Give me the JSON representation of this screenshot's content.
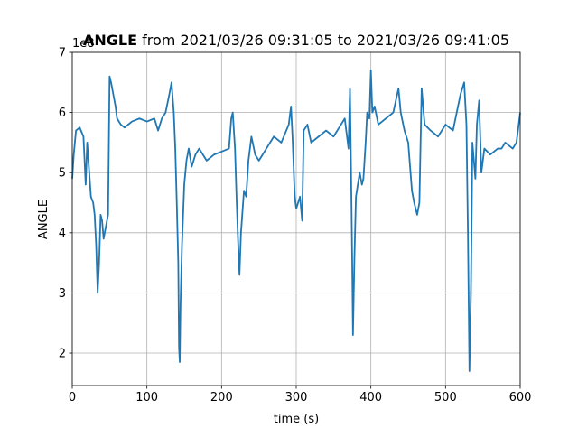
{
  "chart_data": {
    "type": "line",
    "title": {
      "bold": "ANGLE",
      "rest": " from 2021/03/26 09:31:05 to 2021/03/26 09:41:05"
    },
    "y_offset_text": "1e8",
    "xlabel": "time (s)",
    "ylabel": "ANGLE",
    "color": "#1f77b4",
    "grid": true,
    "xlim": [
      0,
      600
    ],
    "ylim": [
      1.46,
      7
    ],
    "xticks": [
      0,
      100,
      200,
      300,
      400,
      500,
      600
    ],
    "yticks": [
      2,
      3,
      4,
      5,
      6,
      7
    ],
    "x": [
      0,
      2,
      5,
      10,
      15,
      18,
      20,
      25,
      28,
      30,
      32,
      34,
      36,
      38,
      40,
      42,
      45,
      48,
      50,
      52,
      55,
      58,
      60,
      65,
      70,
      80,
      90,
      100,
      110,
      115,
      120,
      125,
      130,
      133,
      136,
      138,
      140,
      142,
      143,
      144,
      145,
      147,
      150,
      153,
      156,
      160,
      165,
      170,
      180,
      190,
      200,
      210,
      213,
      215,
      218,
      220,
      222,
      224,
      226,
      230,
      233,
      236,
      240,
      245,
      250,
      255,
      260,
      270,
      280,
      290,
      293,
      295,
      298,
      300,
      305,
      308,
      310,
      315,
      320,
      330,
      340,
      350,
      360,
      365,
      368,
      370,
      372,
      374,
      375,
      376,
      378,
      380,
      385,
      388,
      390,
      393,
      395,
      398,
      400,
      402,
      405,
      410,
      420,
      430,
      437,
      440,
      445,
      450,
      455,
      458,
      462,
      465,
      468,
      472,
      480,
      490,
      500,
      510,
      520,
      525,
      528,
      530,
      532,
      534,
      536,
      538,
      540,
      542,
      545,
      548,
      552,
      560,
      570,
      575,
      580,
      590,
      595,
      600
    ],
    "values": [
      4.9,
      5.3,
      5.7,
      5.75,
      5.6,
      4.8,
      5.5,
      4.6,
      4.5,
      4.3,
      3.8,
      3.0,
      3.5,
      4.3,
      4.2,
      3.9,
      4.1,
      4.3,
      6.6,
      6.5,
      6.3,
      6.1,
      5.9,
      5.8,
      5.75,
      5.85,
      5.9,
      5.85,
      5.9,
      5.7,
      5.9,
      6.0,
      6.3,
      6.5,
      6.0,
      5.4,
      4.5,
      3.5,
      2.1,
      1.85,
      2.8,
      3.8,
      4.8,
      5.2,
      5.4,
      5.1,
      5.3,
      5.4,
      5.2,
      5.3,
      5.35,
      5.4,
      5.9,
      6.0,
      5.4,
      4.6,
      3.9,
      3.3,
      4.0,
      4.7,
      4.6,
      5.2,
      5.6,
      5.3,
      5.2,
      5.3,
      5.4,
      5.6,
      5.5,
      5.8,
      6.1,
      5.6,
      4.6,
      4.4,
      4.6,
      4.2,
      5.7,
      5.8,
      5.5,
      5.6,
      5.7,
      5.6,
      5.8,
      5.9,
      5.6,
      5.4,
      6.4,
      4.5,
      3.5,
      2.3,
      3.6,
      4.6,
      5.0,
      4.8,
      4.9,
      5.5,
      6.0,
      5.9,
      6.7,
      6.0,
      6.1,
      5.8,
      5.9,
      6.0,
      6.4,
      6.0,
      5.7,
      5.5,
      4.7,
      4.5,
      4.3,
      4.5,
      6.4,
      5.8,
      5.7,
      5.6,
      5.8,
      5.7,
      6.3,
      6.5,
      5.8,
      4.0,
      1.7,
      3.0,
      5.5,
      5.2,
      4.9,
      5.8,
      6.2,
      5.0,
      5.4,
      5.3,
      5.4,
      5.4,
      5.5,
      5.4,
      5.5,
      6.0
    ]
  }
}
